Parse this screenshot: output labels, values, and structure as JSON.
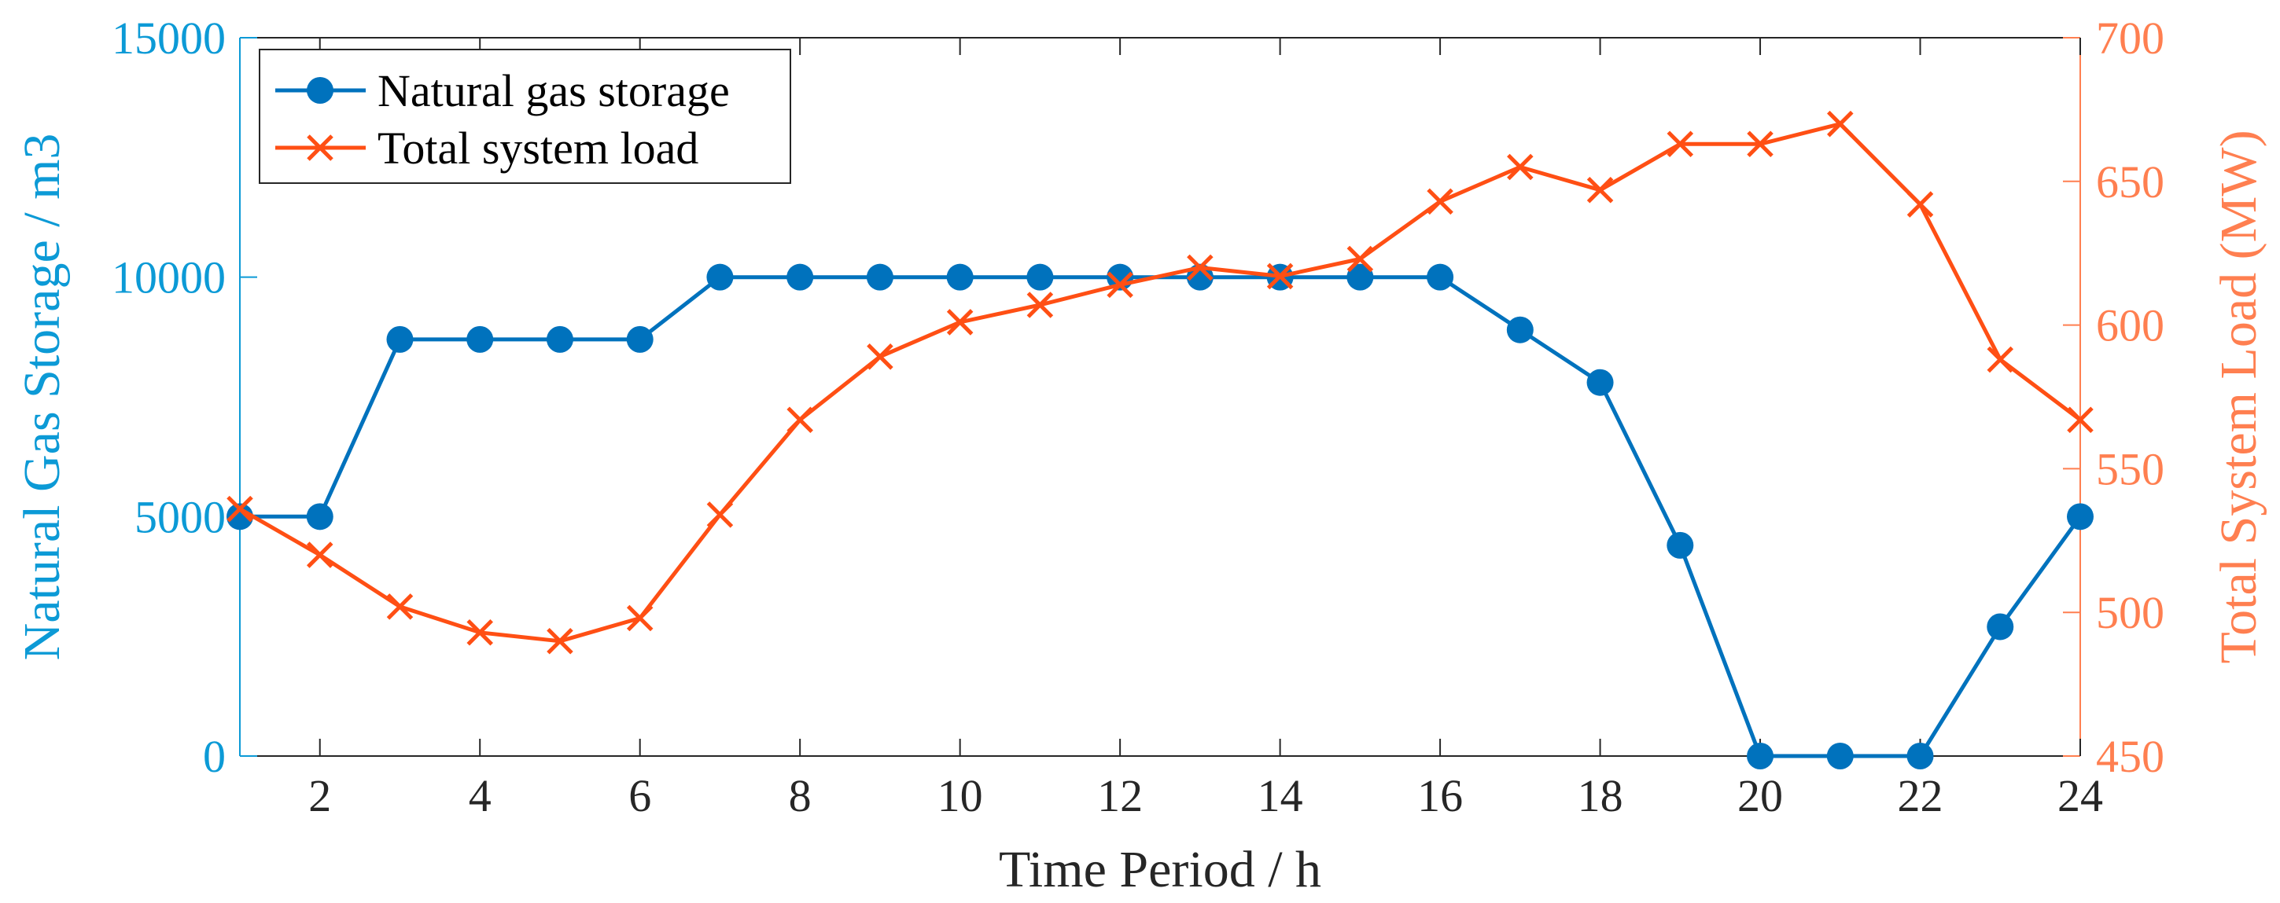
{
  "chart_data": {
    "type": "line",
    "title": "",
    "xlabel": "Time Period / h",
    "ylabel": "Natural Gas Storage / m3",
    "y2label": "Total System Load (MW)",
    "x": [
      1,
      2,
      3,
      4,
      5,
      6,
      7,
      8,
      9,
      10,
      11,
      12,
      13,
      14,
      15,
      16,
      17,
      18,
      19,
      20,
      21,
      22,
      23,
      24
    ],
    "xlim": [
      1,
      24
    ],
    "ylim": [
      0,
      15000
    ],
    "y2lim": [
      450,
      700
    ],
    "xticks": [
      2,
      4,
      6,
      8,
      10,
      12,
      14,
      16,
      18,
      20,
      22,
      24
    ],
    "yticks": [
      0,
      5000,
      10000,
      15000
    ],
    "y2ticks": [
      450,
      500,
      550,
      600,
      650,
      700
    ],
    "grid": false,
    "legend_position": "top-left",
    "colors": {
      "storage": "#0072bd",
      "load": "#ff4f14",
      "left_axis": "#0c9ad6",
      "right_axis": "#ff7f50",
      "frame": "#262626"
    },
    "series": [
      {
        "name": "Natural gas storage",
        "axis": "left",
        "marker": "circle",
        "values": [
          5000,
          5000,
          8700,
          8700,
          8700,
          8700,
          10000,
          10000,
          10000,
          10000,
          10000,
          10000,
          10000,
          10000,
          10000,
          10000,
          8900,
          7800,
          4400,
          0,
          0,
          0,
          2700,
          5000
        ]
      },
      {
        "name": "Total system load",
        "axis": "right",
        "marker": "x",
        "values": [
          536,
          520,
          502,
          493,
          490,
          498,
          534,
          567,
          589,
          601,
          607,
          614,
          620,
          617,
          623,
          643,
          655,
          647,
          663,
          663,
          670,
          642,
          588,
          567
        ]
      }
    ]
  }
}
